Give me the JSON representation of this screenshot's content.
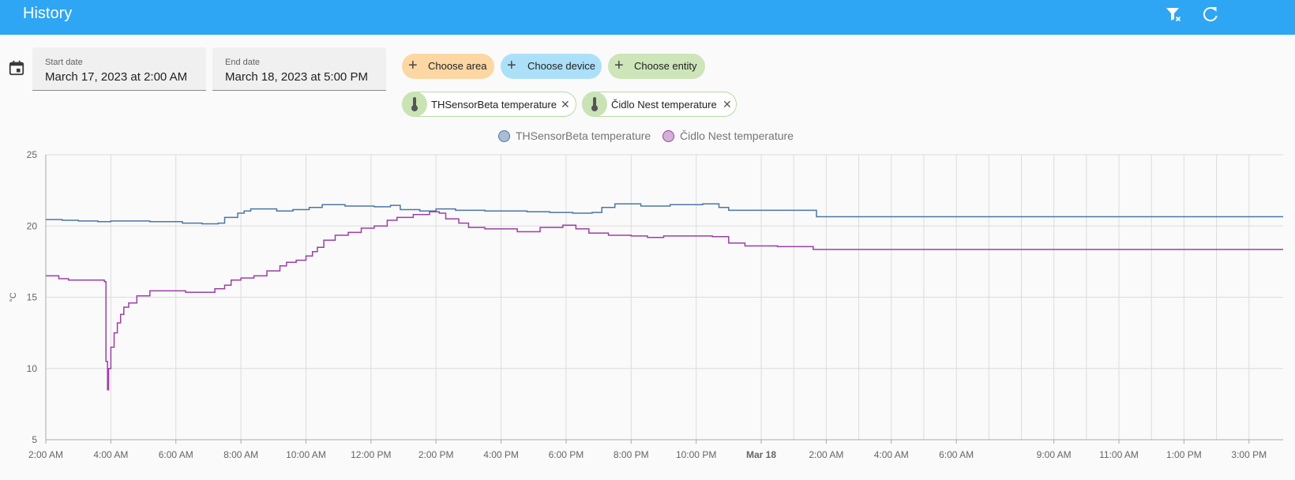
{
  "header": {
    "title": "History"
  },
  "date_range": {
    "start": {
      "label": "Start date",
      "value": "March 17, 2023 at 2:00 AM"
    },
    "end": {
      "label": "End date",
      "value": "March 18, 2023 at 5:00 PM"
    }
  },
  "pickers": {
    "area": {
      "label": "Choose area",
      "color": "#fdd7a3"
    },
    "device": {
      "label": "Choose device",
      "color": "#ace0f9"
    },
    "entity": {
      "label": "Choose entity",
      "color": "#cde5b9"
    }
  },
  "selected_entities": [
    {
      "label": "THSensorBeta temperature",
      "icon": "thermometer-icon"
    },
    {
      "label": "Čidlo Nest temperature",
      "icon": "thermometer-icon"
    }
  ],
  "colors": {
    "header": "#2ea6f3",
    "series1": "#4a76a8",
    "series2": "#9c3fa8"
  },
  "chart_data": {
    "type": "line",
    "title": "",
    "xlabel": "",
    "ylabel": "°C",
    "ylim": [
      5,
      25
    ],
    "yticks": [
      5,
      10,
      15,
      20,
      25
    ],
    "grid": true,
    "legend_position": "top-center",
    "xticks": [
      {
        "t": 0,
        "label": "2:00 AM"
      },
      {
        "t": 2,
        "label": "4:00 AM"
      },
      {
        "t": 4,
        "label": "6:00 AM"
      },
      {
        "t": 6,
        "label": "8:00 AM"
      },
      {
        "t": 8,
        "label": "10:00 AM"
      },
      {
        "t": 10,
        "label": "12:00 PM"
      },
      {
        "t": 12,
        "label": "2:00 PM"
      },
      {
        "t": 14,
        "label": "4:00 PM"
      },
      {
        "t": 16,
        "label": "6:00 PM"
      },
      {
        "t": 18,
        "label": "8:00 PM"
      },
      {
        "t": 20,
        "label": "10:00 PM"
      },
      {
        "t": 22,
        "label": "Mar 18",
        "bold": true
      },
      {
        "t": 24,
        "label": "2:00 AM"
      },
      {
        "t": 26,
        "label": "4:00 AM"
      },
      {
        "t": 28,
        "label": "6:00 AM"
      },
      {
        "t": 31,
        "label": "9:00 AM"
      },
      {
        "t": 33,
        "label": "11:00 AM"
      },
      {
        "t": 35,
        "label": "1:00 PM"
      },
      {
        "t": 37,
        "label": "3:00 PM"
      }
    ],
    "minor_gridlines": [
      23,
      25,
      27,
      29,
      30,
      32,
      34,
      36
    ],
    "x_range": [
      0,
      38.05
    ],
    "series": [
      {
        "name": "THSensorBeta temperature",
        "color": "#4a76a8",
        "points": [
          [
            0,
            20.45
          ],
          [
            0.5,
            20.4
          ],
          [
            1,
            20.35
          ],
          [
            1.6,
            20.3
          ],
          [
            2,
            20.35
          ],
          [
            3.2,
            20.3
          ],
          [
            4,
            20.3
          ],
          [
            4.2,
            20.2
          ],
          [
            4.8,
            20.15
          ],
          [
            5.3,
            20.2
          ],
          [
            5.5,
            20.6
          ],
          [
            5.9,
            20.9
          ],
          [
            6.1,
            21.05
          ],
          [
            6.3,
            21.2
          ],
          [
            7.1,
            21.05
          ],
          [
            7.6,
            21.15
          ],
          [
            8.1,
            21.3
          ],
          [
            8.5,
            21.5
          ],
          [
            9.2,
            21.4
          ],
          [
            10.1,
            21.35
          ],
          [
            10.6,
            21.45
          ],
          [
            10.9,
            21.15
          ],
          [
            11.5,
            21.05
          ],
          [
            12.0,
            21.2
          ],
          [
            12.6,
            21.1
          ],
          [
            13.5,
            21.05
          ],
          [
            14.0,
            21.05
          ],
          [
            14.8,
            21.0
          ],
          [
            15.5,
            20.95
          ],
          [
            16.2,
            20.9
          ],
          [
            16.8,
            20.95
          ],
          [
            17.1,
            21.3
          ],
          [
            17.5,
            21.55
          ],
          [
            18.3,
            21.4
          ],
          [
            19.2,
            21.5
          ],
          [
            20.2,
            21.55
          ],
          [
            20.7,
            21.3
          ],
          [
            21.0,
            21.1
          ],
          [
            22.5,
            21.1
          ],
          [
            23.7,
            20.65
          ],
          [
            38.05,
            20.65
          ]
        ]
      },
      {
        "name": "Čidlo Nest temperature",
        "color": "#9c3fa8",
        "points": [
          [
            0,
            16.5
          ],
          [
            0.4,
            16.3
          ],
          [
            0.7,
            16.2
          ],
          [
            1.8,
            16.1
          ],
          [
            1.85,
            10.5
          ],
          [
            1.9,
            8.5
          ],
          [
            1.93,
            10.0
          ],
          [
            2.0,
            11.5
          ],
          [
            2.1,
            12.5
          ],
          [
            2.2,
            13.2
          ],
          [
            2.3,
            13.8
          ],
          [
            2.4,
            14.3
          ],
          [
            2.55,
            14.6
          ],
          [
            2.8,
            15.1
          ],
          [
            3.2,
            15.45
          ],
          [
            3.9,
            15.45
          ],
          [
            4.3,
            15.35
          ],
          [
            4.8,
            15.35
          ],
          [
            5.2,
            15.6
          ],
          [
            5.5,
            15.85
          ],
          [
            5.7,
            16.2
          ],
          [
            6.0,
            16.35
          ],
          [
            6.4,
            16.5
          ],
          [
            6.8,
            16.85
          ],
          [
            7.2,
            17.2
          ],
          [
            7.4,
            17.45
          ],
          [
            7.7,
            17.6
          ],
          [
            8.0,
            17.9
          ],
          [
            8.2,
            18.2
          ],
          [
            8.35,
            18.5
          ],
          [
            8.55,
            19.0
          ],
          [
            8.9,
            19.35
          ],
          [
            9.3,
            19.55
          ],
          [
            9.7,
            19.85
          ],
          [
            10.1,
            20.0
          ],
          [
            10.5,
            20.4
          ],
          [
            10.8,
            20.6
          ],
          [
            11.3,
            20.8
          ],
          [
            11.8,
            21.0
          ],
          [
            12.1,
            20.9
          ],
          [
            12.3,
            20.5
          ],
          [
            12.7,
            20.2
          ],
          [
            13.0,
            19.9
          ],
          [
            13.5,
            19.8
          ],
          [
            13.9,
            19.8
          ],
          [
            14.5,
            19.6
          ],
          [
            15.2,
            19.9
          ],
          [
            15.9,
            20.05
          ],
          [
            16.3,
            19.8
          ],
          [
            16.7,
            19.5
          ],
          [
            17.3,
            19.35
          ],
          [
            18.0,
            19.3
          ],
          [
            18.5,
            19.2
          ],
          [
            19.0,
            19.3
          ],
          [
            19.8,
            19.3
          ],
          [
            20.5,
            19.25
          ],
          [
            21.0,
            18.8
          ],
          [
            21.5,
            18.6
          ],
          [
            22.5,
            18.55
          ],
          [
            23.6,
            18.35
          ],
          [
            38.05,
            18.35
          ]
        ]
      }
    ]
  }
}
